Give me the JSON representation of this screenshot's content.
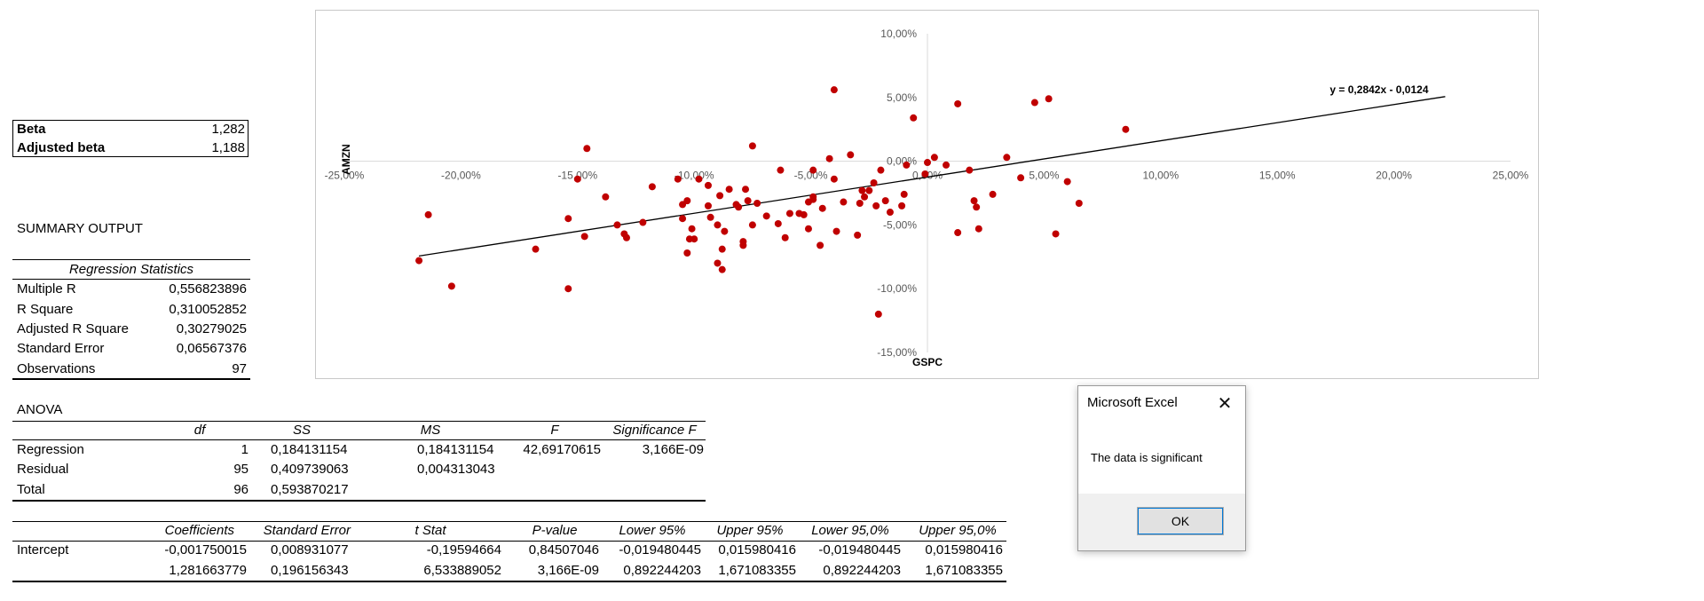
{
  "beta_box": {
    "rows": [
      {
        "label": "Beta",
        "value": "1,282"
      },
      {
        "label": "Adjusted beta",
        "value": "1,188"
      }
    ]
  },
  "summary": {
    "title": "SUMMARY OUTPUT",
    "regression_header": "Regression Statistics",
    "stats": [
      {
        "label": "Multiple R",
        "value": "0,556823896"
      },
      {
        "label": "R Square",
        "value": "0,310052852"
      },
      {
        "label": "Adjusted R Square",
        "value": "0,30279025"
      },
      {
        "label": "Standard Error",
        "value": "0,06567376"
      },
      {
        "label": "Observations",
        "value": "97"
      }
    ]
  },
  "anova": {
    "title": "ANOVA",
    "headers": [
      "df",
      "SS",
      "MS",
      "F",
      "Significance F"
    ],
    "rows": [
      {
        "label": "Regression",
        "df": "1",
        "ss": "0,184131154",
        "ms": "0,184131154",
        "f": "42,69170615",
        "sigf": "3,166E-09"
      },
      {
        "label": "Residual",
        "df": "95",
        "ss": "0,409739063",
        "ms": "0,004313043",
        "f": "",
        "sigf": ""
      },
      {
        "label": "Total",
        "df": "96",
        "ss": "0,593870217",
        "ms": "",
        "f": "",
        "sigf": ""
      }
    ]
  },
  "coefficients": {
    "headers": [
      "Coefficients",
      "Standard Error",
      "t Stat",
      "P-value",
      "Lower 95%",
      "Upper 95%",
      "Lower 95,0%",
      "Upper 95,0%"
    ],
    "rows": [
      {
        "label": "Intercept",
        "values": [
          "-0,001750015",
          "0,008931077",
          "-0,19594664",
          "0,84507046",
          "-0,019480445",
          "0,015980416",
          "-0,019480445",
          "0,015980416"
        ]
      },
      {
        "label": "",
        "values": [
          "1,281663779",
          "0,196156343",
          "6,533889052",
          "3,166E-09",
          "0,892244203",
          "1,671083355",
          "0,892244203",
          "1,671083355"
        ]
      }
    ]
  },
  "chart_data": {
    "type": "scatter",
    "title": "",
    "xlabel": "GSPC",
    "ylabel": "AMZN",
    "xlim": [
      -0.25,
      0.25
    ],
    "ylim": [
      -0.15,
      0.1
    ],
    "x_ticks": [
      "-25,00%",
      "-20,00%",
      "-15,00%",
      "-10,00%",
      "-5,00%",
      "0,00%",
      "5,00%",
      "10,00%",
      "15,00%",
      "20,00%",
      "25,00%"
    ],
    "y_ticks": [
      "10,00%",
      "5,00%",
      "0,00%",
      "-5,00%",
      "-10,00%",
      "-15,00%"
    ],
    "marker_color": "#c00000",
    "trendline": {
      "label": "y = 0,2842x - 0,0124",
      "slope": 0.2842,
      "intercept": -0.0124,
      "x_range": [
        -0.218,
        0.222
      ]
    },
    "points": [
      [
        -0.218,
        -0.078
      ],
      [
        -0.214,
        -0.042
      ],
      [
        -0.204,
        -0.098
      ],
      [
        -0.168,
        -0.069
      ],
      [
        -0.154,
        -0.045
      ],
      [
        -0.154,
        -0.1
      ],
      [
        -0.15,
        -0.014
      ],
      [
        -0.147,
        -0.059
      ],
      [
        -0.146,
        0.01
      ],
      [
        -0.138,
        -0.028
      ],
      [
        -0.133,
        -0.05
      ],
      [
        -0.13,
        -0.057
      ],
      [
        -0.129,
        -0.06
      ],
      [
        -0.122,
        -0.048
      ],
      [
        -0.118,
        -0.02
      ],
      [
        -0.107,
        -0.014
      ],
      [
        -0.105,
        -0.045
      ],
      [
        -0.105,
        -0.034
      ],
      [
        -0.103,
        -0.031
      ],
      [
        -0.103,
        -0.072
      ],
      [
        -0.102,
        -0.061
      ],
      [
        -0.101,
        -0.053
      ],
      [
        -0.1,
        -0.061
      ],
      [
        -0.098,
        -0.014
      ],
      [
        -0.094,
        -0.019
      ],
      [
        -0.094,
        -0.035
      ],
      [
        -0.093,
        -0.044
      ],
      [
        -0.09,
        -0.08
      ],
      [
        -0.09,
        -0.05
      ],
      [
        -0.089,
        -0.027
      ],
      [
        -0.088,
        -0.069
      ],
      [
        -0.088,
        -0.085
      ],
      [
        -0.087,
        -0.055
      ],
      [
        -0.085,
        -0.022
      ],
      [
        -0.082,
        -0.034
      ],
      [
        -0.081,
        -0.036
      ],
      [
        -0.079,
        -0.063
      ],
      [
        -0.079,
        -0.066
      ],
      [
        -0.078,
        -0.022
      ],
      [
        -0.077,
        -0.031
      ],
      [
        -0.075,
        0.012
      ],
      [
        -0.075,
        -0.05
      ],
      [
        -0.073,
        -0.033
      ],
      [
        -0.069,
        -0.043
      ],
      [
        -0.064,
        -0.049
      ],
      [
        -0.063,
        -0.007
      ],
      [
        -0.061,
        -0.06
      ],
      [
        -0.059,
        -0.041
      ],
      [
        -0.055,
        -0.041
      ],
      [
        -0.053,
        -0.042
      ],
      [
        -0.051,
        -0.032
      ],
      [
        -0.051,
        -0.053
      ],
      [
        -0.049,
        -0.028
      ],
      [
        -0.049,
        -0.03
      ],
      [
        -0.049,
        -0.007
      ],
      [
        -0.046,
        -0.066
      ],
      [
        -0.045,
        -0.037
      ],
      [
        -0.042,
        0.002
      ],
      [
        -0.04,
        0.056
      ],
      [
        -0.04,
        -0.014
      ],
      [
        -0.039,
        -0.055
      ],
      [
        -0.036,
        -0.032
      ],
      [
        -0.033,
        0.005
      ],
      [
        -0.03,
        -0.058
      ],
      [
        -0.029,
        -0.033
      ],
      [
        -0.028,
        -0.023
      ],
      [
        -0.027,
        -0.028
      ],
      [
        -0.025,
        -0.023
      ],
      [
        -0.023,
        -0.017
      ],
      [
        -0.022,
        -0.035
      ],
      [
        -0.021,
        -0.12
      ],
      [
        -0.02,
        -0.007
      ],
      [
        -0.018,
        -0.031
      ],
      [
        -0.016,
        -0.04
      ],
      [
        -0.011,
        -0.035
      ],
      [
        -0.01,
        -0.026
      ],
      [
        -0.009,
        -0.003
      ],
      [
        -0.006,
        0.034
      ],
      [
        -0.001,
        -0.01
      ],
      [
        0.0,
        -0.001
      ],
      [
        0.003,
        0.003
      ],
      [
        0.008,
        -0.003
      ],
      [
        0.013,
        0.045
      ],
      [
        0.013,
        -0.056
      ],
      [
        0.018,
        -0.007
      ],
      [
        0.02,
        -0.031
      ],
      [
        0.021,
        -0.036
      ],
      [
        0.022,
        -0.053
      ],
      [
        0.028,
        -0.026
      ],
      [
        0.034,
        0.003
      ],
      [
        0.04,
        -0.013
      ],
      [
        0.046,
        0.046
      ],
      [
        0.052,
        0.049
      ],
      [
        0.055,
        -0.057
      ],
      [
        0.06,
        -0.016
      ],
      [
        0.065,
        -0.033
      ],
      [
        0.085,
        0.025
      ]
    ]
  },
  "dialog": {
    "title": "Microsoft Excel",
    "close_glyph": "✕",
    "message": "The data is significant",
    "ok_label": "OK"
  }
}
